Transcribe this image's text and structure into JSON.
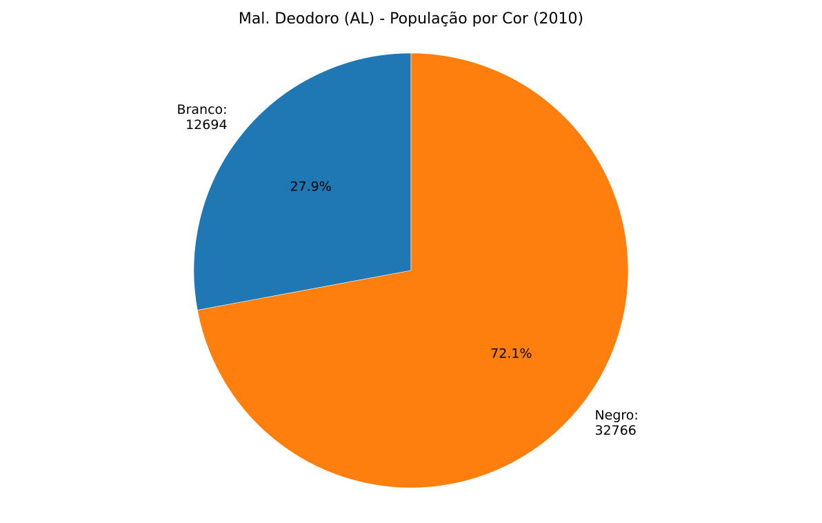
{
  "chart_data": {
    "type": "pie",
    "title": "Mal. Deodoro (AL) - População por Cor (2010)",
    "slices": [
      {
        "label": "Branco",
        "value": 12694,
        "percent": 27.9,
        "label_text": "Branco:",
        "value_text": "12694",
        "pct_text": "27.9%",
        "color": "#1f77b4"
      },
      {
        "label": "Negro",
        "value": 32766,
        "percent": 72.1,
        "label_text": "Negro:",
        "value_text": "32766",
        "pct_text": "72.1%",
        "color": "#ff7f0e"
      }
    ],
    "start_angle_deg": 90,
    "direction": "counterclockwise"
  }
}
